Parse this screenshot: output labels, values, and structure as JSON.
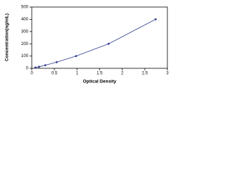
{
  "chart_data": {
    "type": "line",
    "x_label": "Optical Density",
    "y_label": "Concentration(ng/mL)",
    "x": [
      0.08,
      0.16,
      0.3,
      0.55,
      0.98,
      1.7,
      2.74
    ],
    "series": [
      {
        "color": "#2e3d8f",
        "values": [
          6.25,
          12.5,
          25,
          50,
          100,
          200,
          400
        ]
      }
    ],
    "xlim": [
      0,
      3
    ],
    "xticks": [
      0,
      0.5,
      1,
      1.5,
      2,
      2.5,
      3
    ],
    "ylim": [
      0,
      500
    ],
    "yticks": [
      0,
      100,
      200,
      300,
      400,
      500
    ]
  }
}
